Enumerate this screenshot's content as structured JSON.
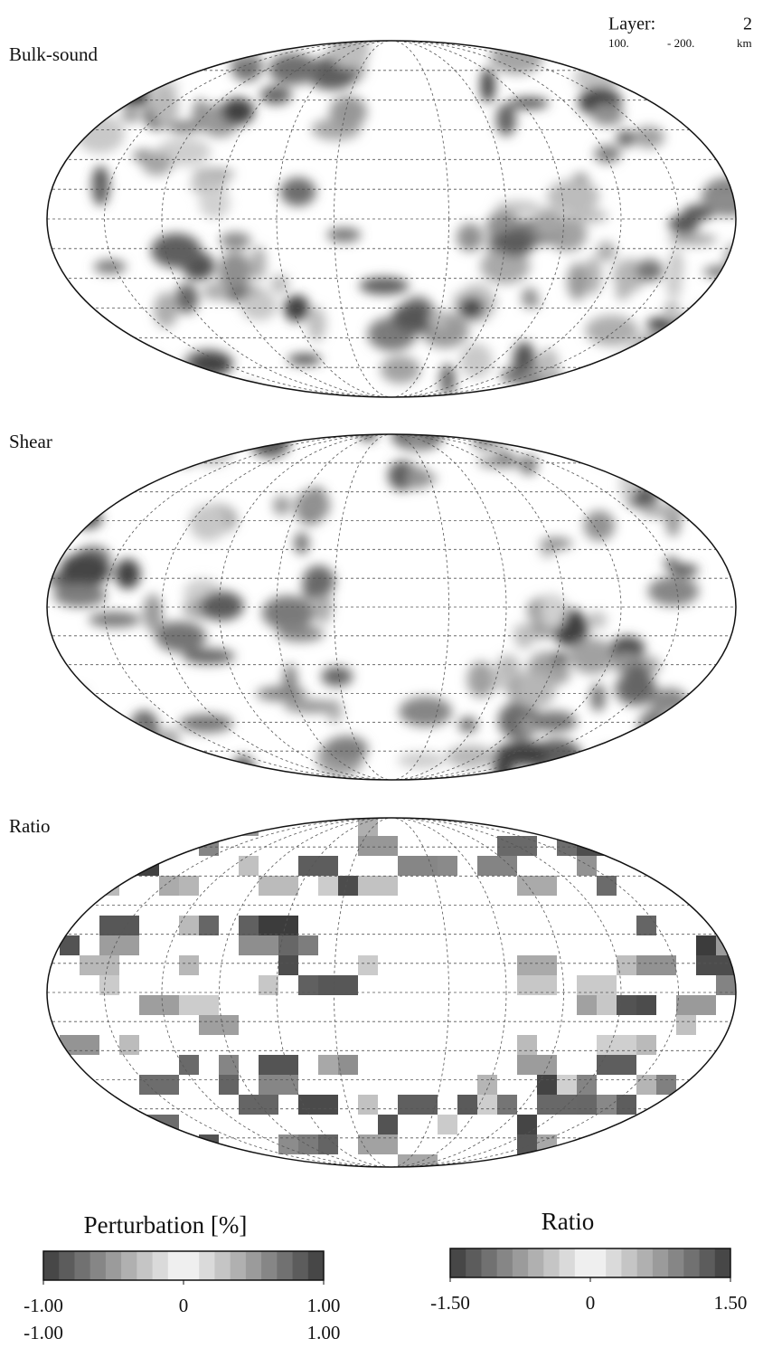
{
  "header": {
    "layer_label": "Layer:",
    "layer": "2",
    "depth_top": "100.",
    "depth_bottom": "- 200.",
    "unit": "km"
  },
  "maps": [
    {
      "title": "Bulk-sound"
    },
    {
      "title": "Shear"
    },
    {
      "title": "Ratio"
    }
  ],
  "colorbars": [
    {
      "title": "Perturbation [%]",
      "lim": [
        -1,
        1
      ],
      "ticks": [
        {
          "value": -1,
          "label": "-1.00"
        },
        0,
        {
          "value": 1,
          "label": "1.00"
        }
      ],
      "ticks2": [
        {
          "value": -1,
          "label": "-1.00"
        },
        {
          "value": 1,
          "label": "1.00"
        }
      ]
    },
    {
      "title": "Ratio",
      "lim": [
        -1.5,
        1.5
      ],
      "ticks": [
        {
          "value": -1.5,
          "label": "-1.50"
        },
        0,
        {
          "value": 1.5,
          "label": "1.50"
        }
      ]
    }
  ]
}
